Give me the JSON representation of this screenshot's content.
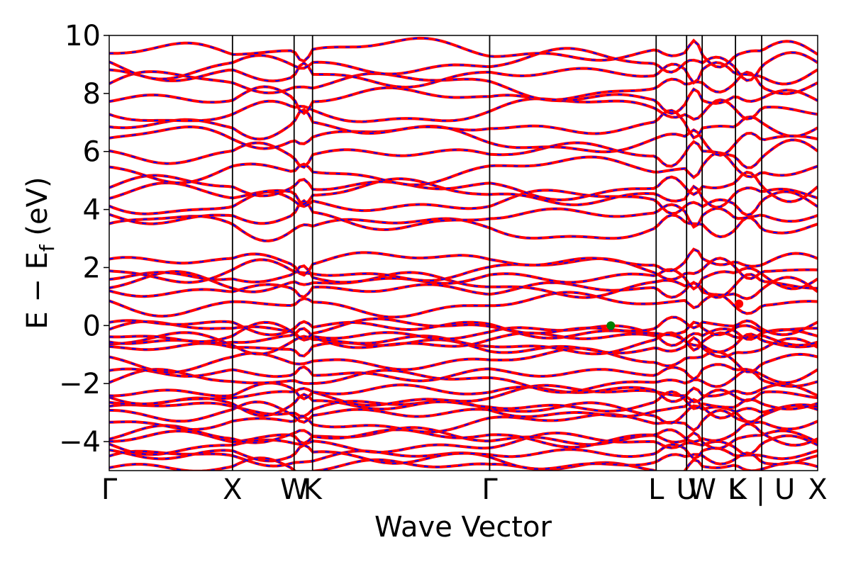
{
  "chart_data": {
    "type": "line",
    "title": "",
    "xlabel": "Wave Vector",
    "ylabel_main": "E − E",
    "ylabel_sub": "f",
    "ylabel_unit": " (eV)",
    "ylim": [
      -5,
      10
    ],
    "yticks": [
      -4,
      -2,
      0,
      2,
      4,
      6,
      8,
      10
    ],
    "ytick_labels": [
      "−4",
      "−2",
      "0",
      "2",
      "4",
      "6",
      "8",
      "10"
    ],
    "xlim": [
      0,
      1
    ],
    "kpoints": [
      {
        "label": "Γ",
        "x": 0.0
      },
      {
        "label": "X",
        "x": 0.174
      },
      {
        "label": "W",
        "x": 0.261
      },
      {
        "label": "K",
        "x": 0.287
      },
      {
        "label": "Γ",
        "x": 0.537
      },
      {
        "label": "L",
        "x": 0.772
      },
      {
        "label": "U",
        "x": 0.815
      },
      {
        "label": "W",
        "x": 0.837
      },
      {
        "label": "L",
        "x": 0.884
      },
      {
        "label": "K | U",
        "x": 0.921
      },
      {
        "label": "X",
        "x": 1.0
      }
    ],
    "band_colors": {
      "spin_up": "#ff0000",
      "spin_down": "#0000ff"
    },
    "band_levels_eV": [
      -4.9,
      -4.6,
      -4.4,
      -4.1,
      -3.9,
      -3.8,
      -3.3,
      -3.0,
      -2.9,
      -2.7,
      -2.4,
      -2.3,
      -1.9,
      -1.6,
      -1.2,
      -0.8,
      -0.6,
      -0.45,
      -0.3,
      -0.15,
      0.0,
      0.75,
      1.2,
      1.4,
      1.7,
      1.9,
      2.2,
      3.4,
      3.8,
      4.2,
      4.5,
      4.8,
      5.4,
      5.9,
      6.4,
      6.9,
      7.4,
      7.8,
      8.3,
      8.7,
      9.0,
      9.4
    ],
    "vbm": {
      "x": 0.708,
      "y": 0.0,
      "color": "#008000"
    },
    "cbm": {
      "x": 0.889,
      "y": 0.75,
      "color": "#ff0000"
    }
  }
}
